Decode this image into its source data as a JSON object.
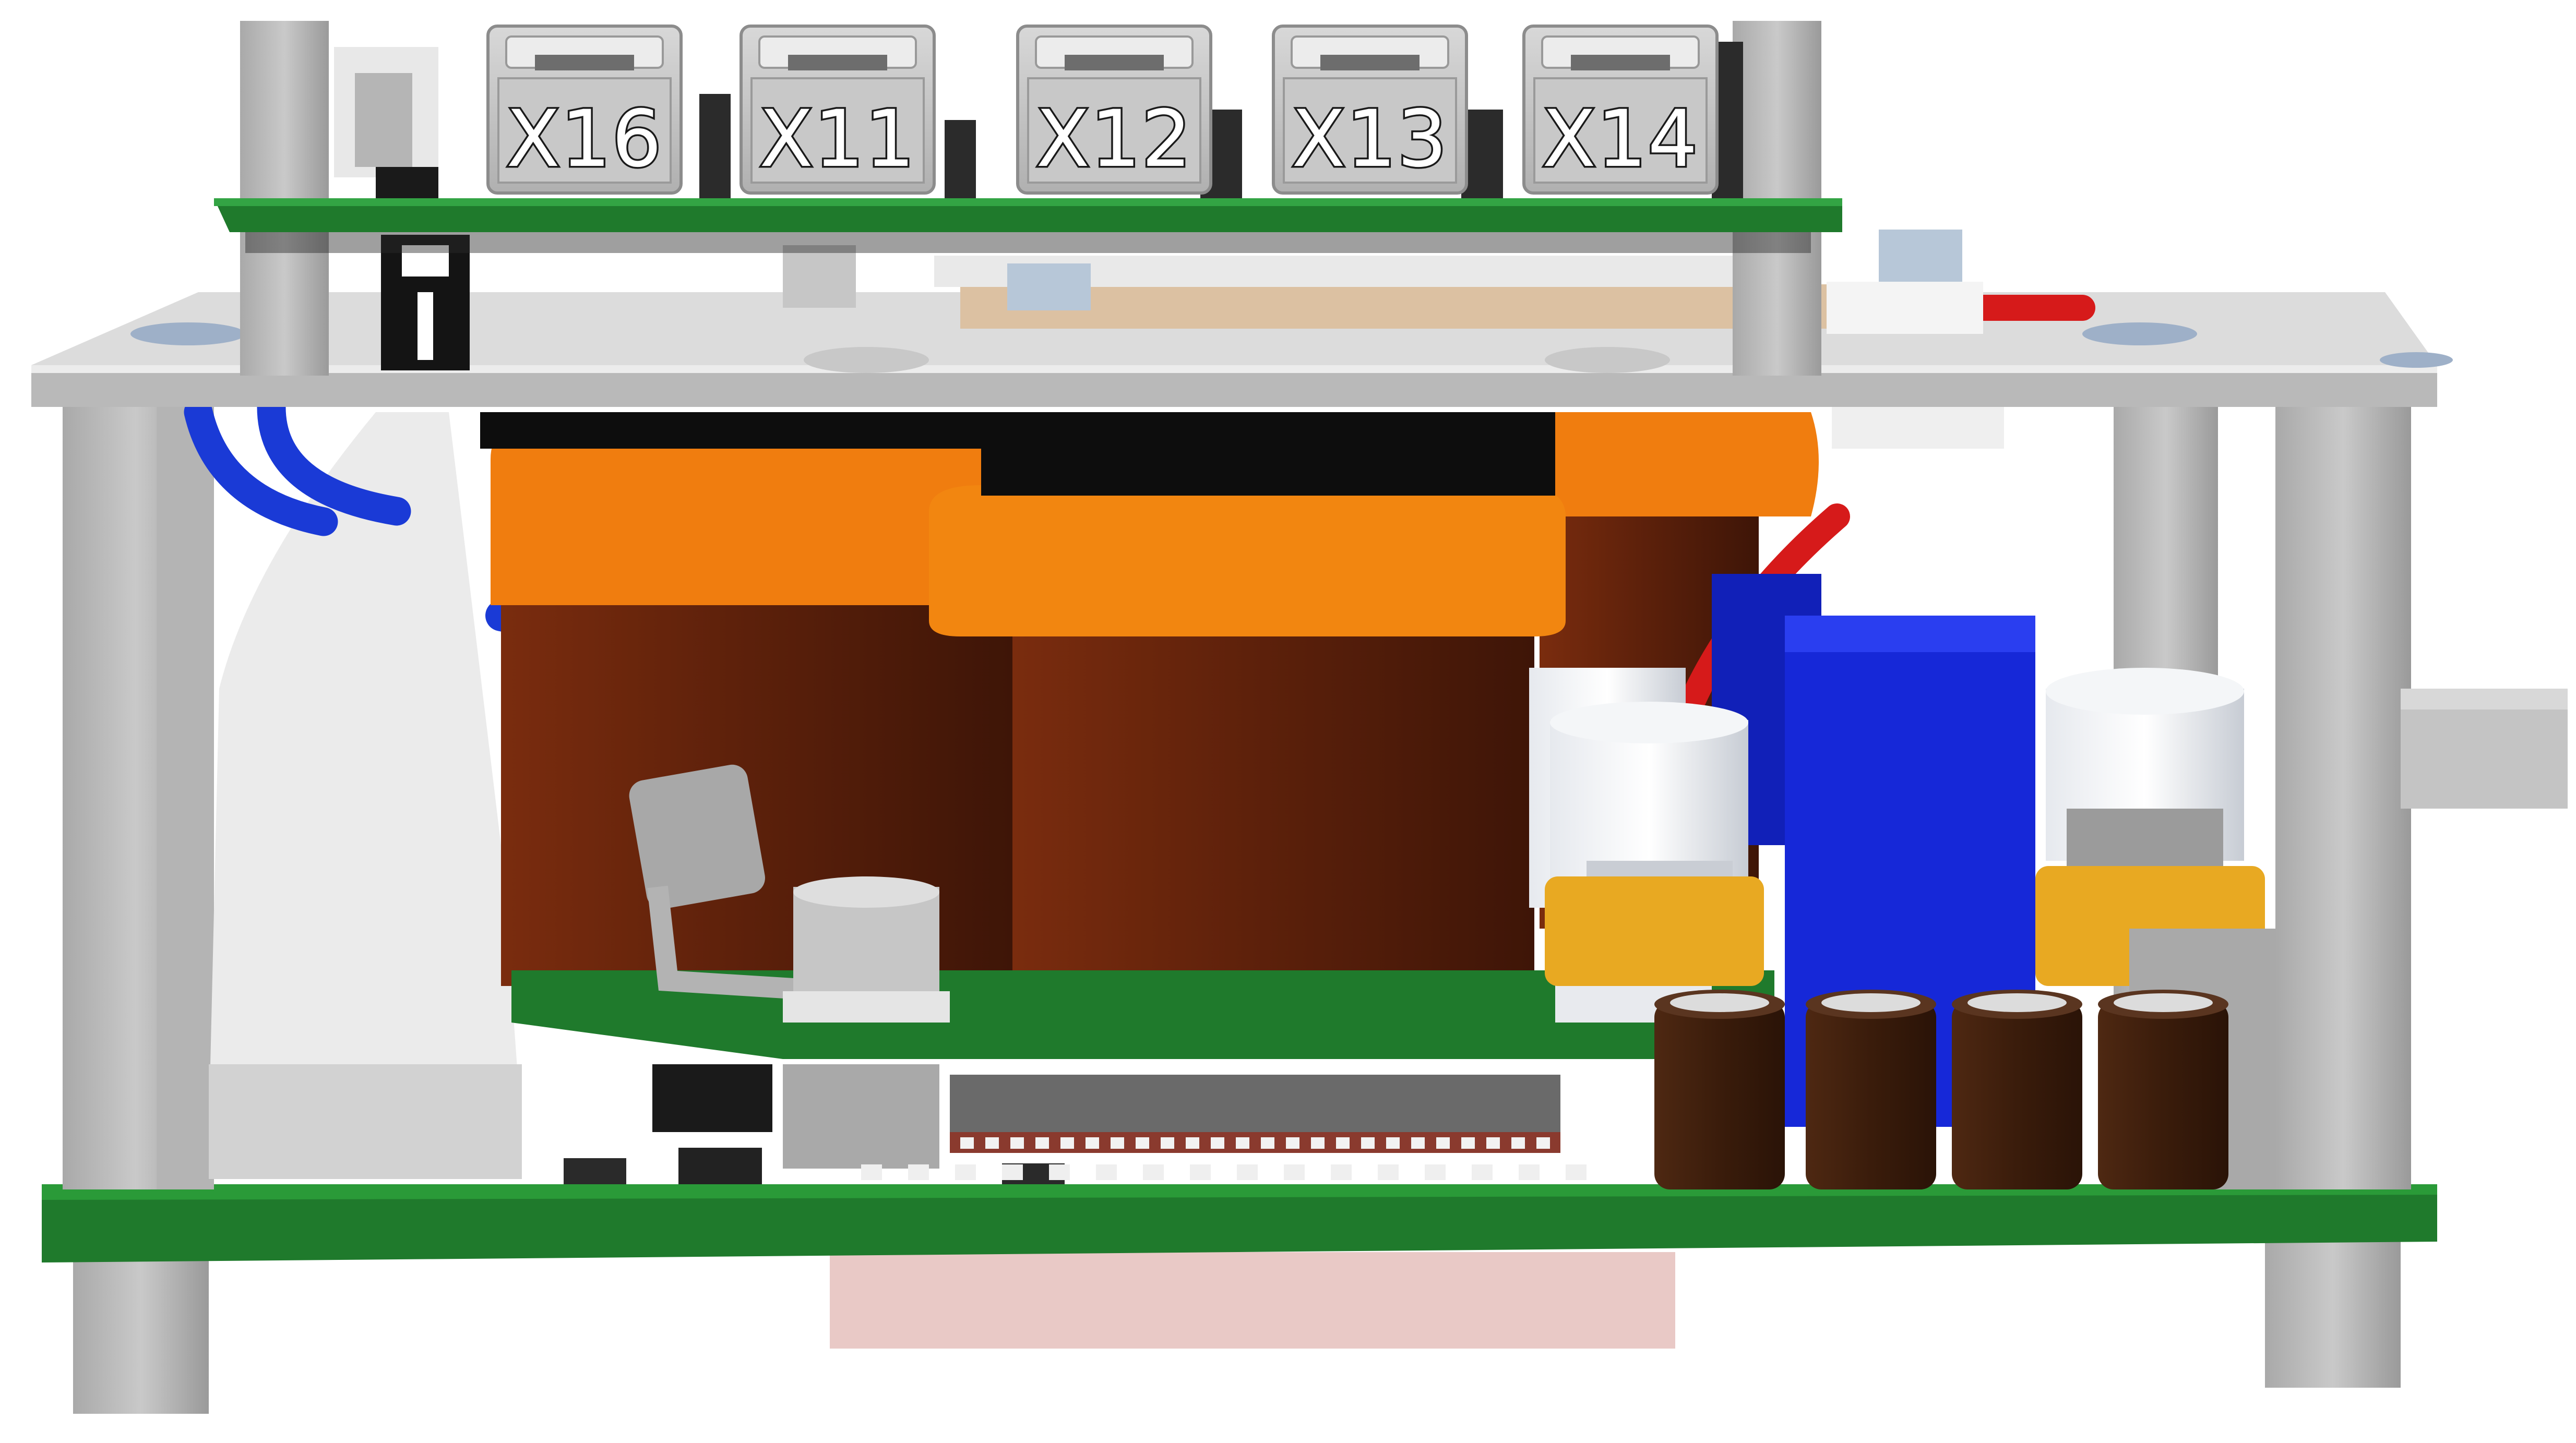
{
  "connectors": [
    {
      "id": "x16",
      "label": "X16"
    },
    {
      "id": "x11",
      "label": "X11"
    },
    {
      "id": "x12",
      "label": "X12"
    },
    {
      "id": "x13",
      "label": "X13"
    },
    {
      "id": "x14",
      "label": "X14"
    }
  ],
  "colors": {
    "pcb_green": "#1f7a2c",
    "plate_gray": "#c8c8c8",
    "capacitor_orange": "#f07d0f",
    "capacitor_brown": "#5a1e0a",
    "wire_blue": "#1a3ad6",
    "wire_red": "#d61a1a",
    "relay_blue": "#1628d8",
    "thermal_pad_pink": "#e9c9c6",
    "small_cap_brown": "#3b1d0e"
  }
}
